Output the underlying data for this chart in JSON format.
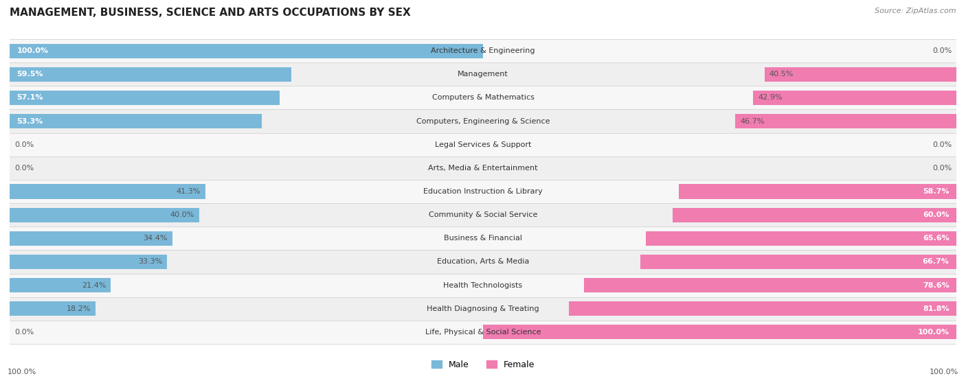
{
  "title": "MANAGEMENT, BUSINESS, SCIENCE AND ARTS OCCUPATIONS BY SEX",
  "source": "Source: ZipAtlas.com",
  "categories": [
    "Architecture & Engineering",
    "Management",
    "Computers & Mathematics",
    "Computers, Engineering & Science",
    "Legal Services & Support",
    "Arts, Media & Entertainment",
    "Education Instruction & Library",
    "Community & Social Service",
    "Business & Financial",
    "Education, Arts & Media",
    "Health Technologists",
    "Health Diagnosing & Treating",
    "Life, Physical & Social Science"
  ],
  "male": [
    100.0,
    59.5,
    57.1,
    53.3,
    0.0,
    0.0,
    41.3,
    40.0,
    34.4,
    33.3,
    21.4,
    18.2,
    0.0
  ],
  "female": [
    0.0,
    40.5,
    42.9,
    46.7,
    0.0,
    0.0,
    58.7,
    60.0,
    65.6,
    66.7,
    78.6,
    81.8,
    100.0
  ],
  "male_color": "#7ab8d9",
  "female_color": "#f07cb0",
  "male_label_color": "#555555",
  "female_label_color": "#555555",
  "row_colors": [
    "#f7f7f7",
    "#efefef"
  ],
  "bar_height": 0.62,
  "figsize": [
    14.06,
    5.58
  ],
  "dpi": 100,
  "xlim": 100,
  "label_fontsize": 8.0,
  "cat_fontsize": 8.0,
  "title_fontsize": 11,
  "source_fontsize": 8
}
